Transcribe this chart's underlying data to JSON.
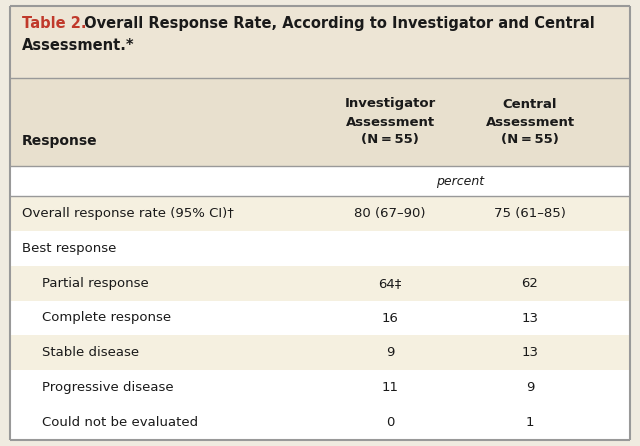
{
  "title_prefix": "Table 2.",
  "title_line1": " Overall Response Rate, According to Investigator and Central",
  "title_line2": "Assessment.*",
  "col1_header": "Investigator\nAssessment\n(N = 55)",
  "col2_header": "Central\nAssessment\n(N = 55)",
  "response_label": "Response",
  "percent_label": "percent",
  "rows": [
    {
      "label": "Overall response rate (95% CI)†",
      "inv": "80 (67–90)",
      "cen": "75 (61–85)",
      "bold": false,
      "indent": 0,
      "shaded": true
    },
    {
      "label": "Best response",
      "inv": "",
      "cen": "",
      "bold": false,
      "indent": 0,
      "shaded": false
    },
    {
      "label": "Partial response",
      "inv": "64‡",
      "cen": "62",
      "bold": false,
      "indent": 1,
      "shaded": true
    },
    {
      "label": "Complete response",
      "inv": "16",
      "cen": "13",
      "bold": false,
      "indent": 1,
      "shaded": false
    },
    {
      "label": "Stable disease",
      "inv": "9",
      "cen": "13",
      "bold": false,
      "indent": 1,
      "shaded": true
    },
    {
      "label": "Progressive disease",
      "inv": "11",
      "cen": "9",
      "bold": false,
      "indent": 1,
      "shaded": false
    },
    {
      "label": "Could not be evaluated",
      "inv": "0",
      "cen": "1",
      "bold": false,
      "indent": 1,
      "shaded": false
    }
  ],
  "colors": {
    "fig_bg": "#f0ebe0",
    "title_bg": "#ede5d5",
    "header_bg": "#e8e0ce",
    "shaded_row": "#f5f0e0",
    "white_row": "#ffffff",
    "border": "#999999",
    "title_red": "#c0392b",
    "title_black": "#1a1a1a",
    "text": "#1a1a1a"
  },
  "figsize": [
    6.4,
    4.46
  ],
  "dpi": 100
}
